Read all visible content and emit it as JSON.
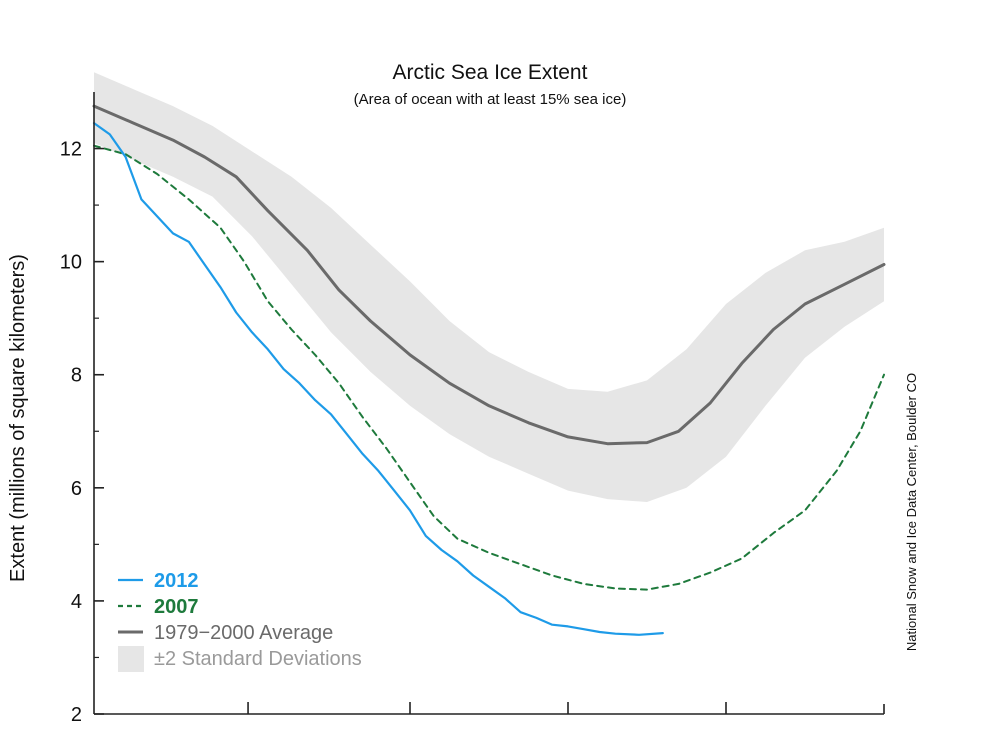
{
  "chart_data": {
    "type": "line",
    "title": "Arctic Sea Ice Extent",
    "subtitle": "(Area of ocean with at least 15% sea ice)",
    "ylabel": "Extent (millions of square kilometers)",
    "xlabel": "",
    "ylim": [
      2,
      13
    ],
    "yticks": [
      2,
      4,
      6,
      8,
      10,
      12
    ],
    "xlim": [
      0,
      1
    ],
    "grid": false,
    "legend_position": "bottom-left",
    "credit": "National Snow and Ice Data Center, Boulder CO",
    "series": [
      {
        "name": "2012",
        "style": "solid",
        "color": "#1e9be8",
        "x": [
          0.0,
          0.02,
          0.04,
          0.06,
          0.08,
          0.1,
          0.12,
          0.14,
          0.16,
          0.18,
          0.2,
          0.22,
          0.24,
          0.26,
          0.28,
          0.3,
          0.32,
          0.34,
          0.36,
          0.38,
          0.4,
          0.42,
          0.44,
          0.46,
          0.48,
          0.5,
          0.52,
          0.54,
          0.56,
          0.58,
          0.6,
          0.62,
          0.64,
          0.66,
          0.69,
          0.72
        ],
        "values": [
          12.45,
          12.25,
          11.85,
          11.1,
          10.8,
          10.5,
          10.35,
          9.95,
          9.55,
          9.1,
          8.75,
          8.45,
          8.1,
          7.85,
          7.55,
          7.3,
          6.95,
          6.6,
          6.3,
          5.95,
          5.6,
          5.15,
          4.9,
          4.7,
          4.45,
          4.25,
          4.05,
          3.8,
          3.7,
          3.58,
          3.55,
          3.5,
          3.45,
          3.42,
          3.4,
          3.43
        ]
      },
      {
        "name": "2007",
        "style": "dashed",
        "color": "#1e7a3c",
        "x": [
          0.0,
          0.04,
          0.08,
          0.12,
          0.16,
          0.19,
          0.22,
          0.25,
          0.28,
          0.31,
          0.34,
          0.37,
          0.4,
          0.43,
          0.46,
          0.5,
          0.54,
          0.58,
          0.62,
          0.66,
          0.7,
          0.74,
          0.78,
          0.82,
          0.86,
          0.9,
          0.94,
          0.97,
          1.0
        ],
        "values": [
          12.05,
          11.9,
          11.55,
          11.1,
          10.6,
          10.0,
          9.3,
          8.8,
          8.35,
          7.85,
          7.25,
          6.7,
          6.1,
          5.5,
          5.1,
          4.85,
          4.65,
          4.45,
          4.3,
          4.22,
          4.2,
          4.3,
          4.5,
          4.75,
          5.2,
          5.6,
          6.3,
          7.0,
          8.0
        ]
      },
      {
        "name": "1979−2000 Average",
        "style": "solid",
        "color": "#6a6a6a",
        "x": [
          0.0,
          0.05,
          0.1,
          0.14,
          0.18,
          0.22,
          0.27,
          0.31,
          0.35,
          0.4,
          0.45,
          0.5,
          0.55,
          0.6,
          0.65,
          0.7,
          0.74,
          0.78,
          0.82,
          0.86,
          0.9,
          0.95,
          1.0
        ],
        "values": [
          12.75,
          12.45,
          12.15,
          11.85,
          11.5,
          10.9,
          10.2,
          9.5,
          8.95,
          8.35,
          7.85,
          7.45,
          7.15,
          6.9,
          6.78,
          6.8,
          7.0,
          7.5,
          8.2,
          8.8,
          9.25,
          9.6,
          9.95
        ]
      }
    ],
    "bands": [
      {
        "name": "±2 Standard Deviations",
        "color": "#e6e6e6",
        "x": [
          0.0,
          0.05,
          0.1,
          0.15,
          0.2,
          0.25,
          0.3,
          0.35,
          0.4,
          0.45,
          0.5,
          0.55,
          0.6,
          0.65,
          0.7,
          0.75,
          0.8,
          0.85,
          0.9,
          0.95,
          1.0
        ],
        "upper": [
          13.35,
          13.05,
          12.75,
          12.4,
          11.95,
          11.5,
          10.95,
          10.3,
          9.65,
          8.95,
          8.4,
          8.05,
          7.75,
          7.7,
          7.9,
          8.45,
          9.25,
          9.8,
          10.2,
          10.35,
          10.6
        ],
        "lower": [
          12.1,
          11.8,
          11.5,
          11.15,
          10.45,
          9.6,
          8.75,
          8.05,
          7.45,
          6.95,
          6.55,
          6.25,
          5.95,
          5.8,
          5.75,
          6.0,
          6.55,
          7.45,
          8.3,
          8.85,
          9.3
        ]
      }
    ]
  }
}
